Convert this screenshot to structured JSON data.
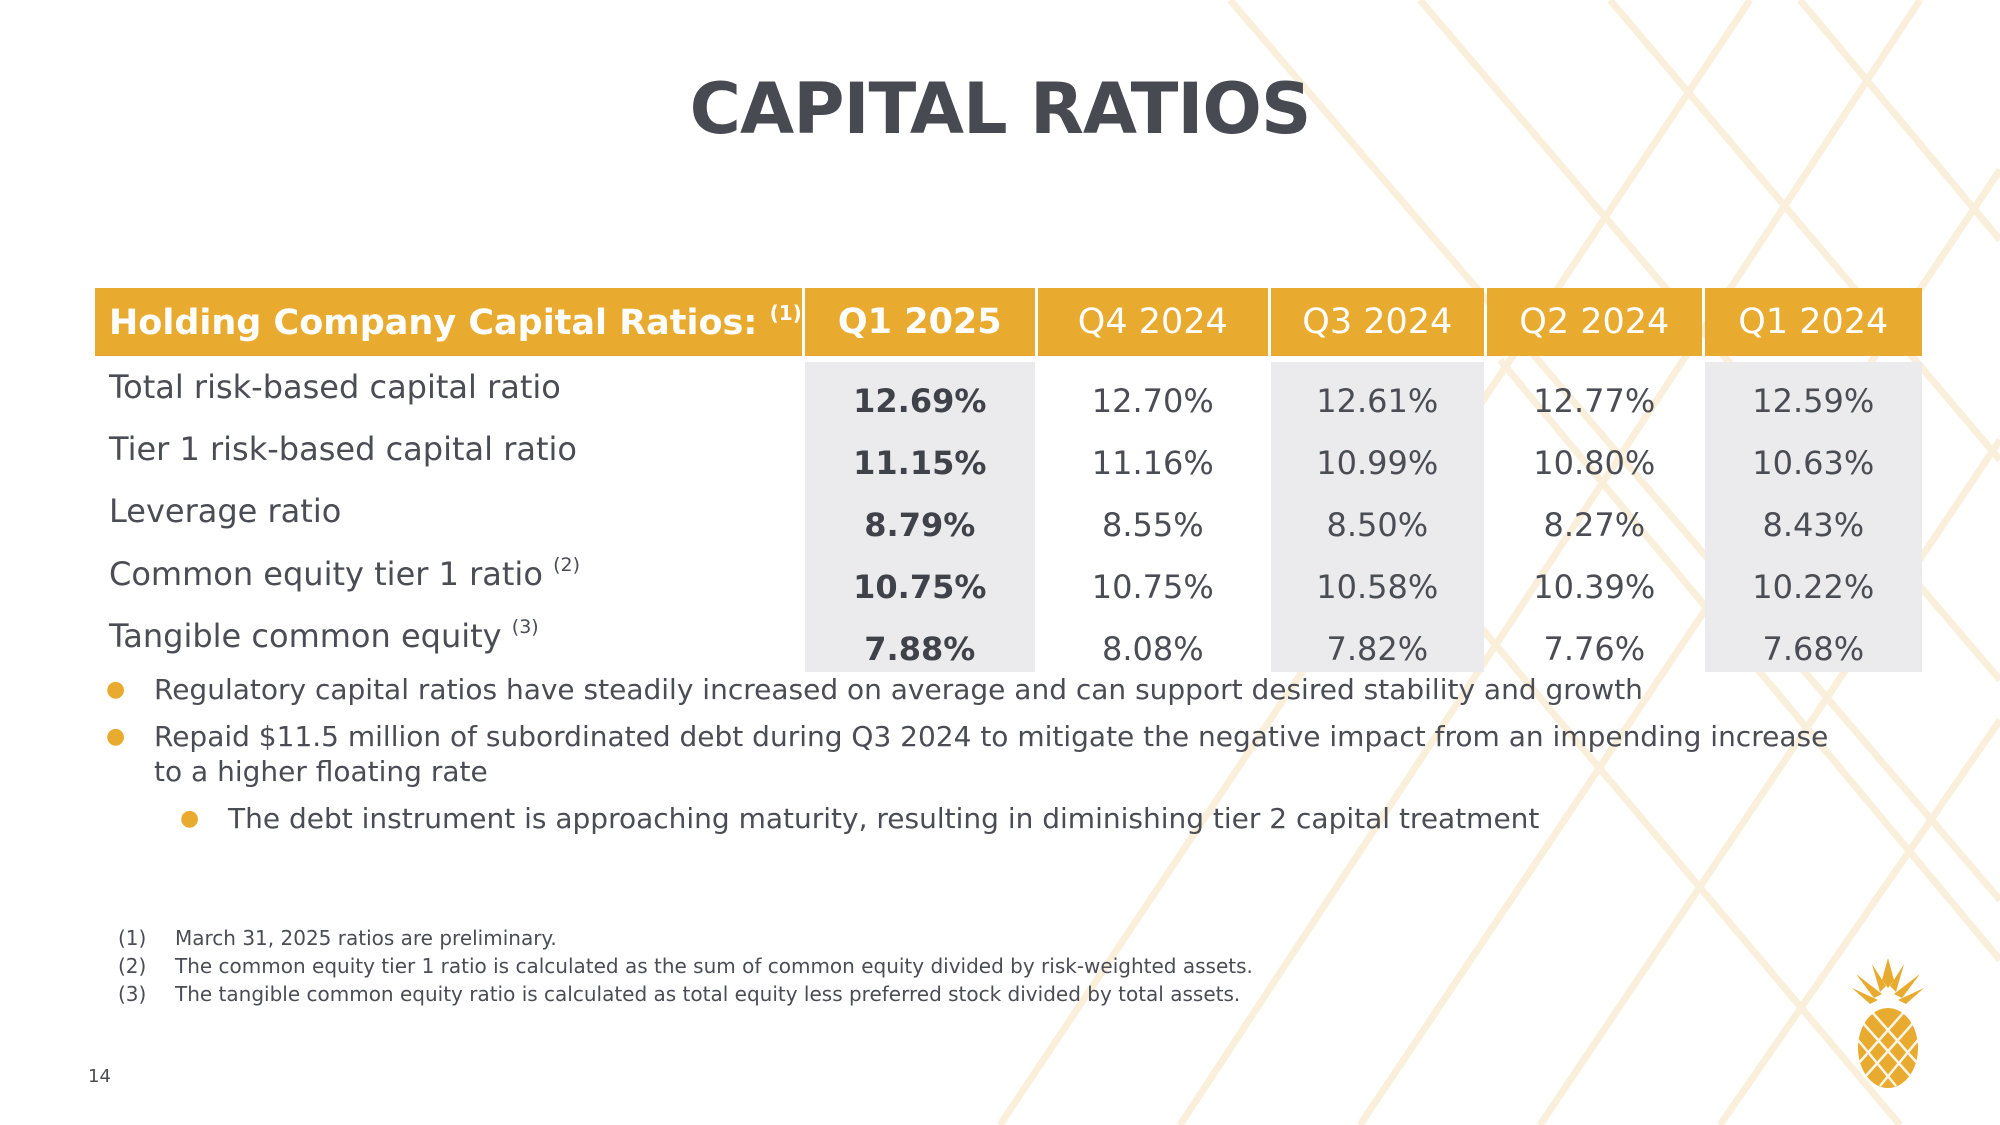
{
  "slide": {
    "title": "CAPITAL RATIOS",
    "page_number": "14",
    "accent_color": "#e8ab2f"
  },
  "table": {
    "header": {
      "row_label": "Holding Company Capital Ratios:",
      "row_label_note": "(1)",
      "columns": [
        "Q1 2025",
        "Q4 2024",
        "Q3 2024",
        "Q2 2024",
        "Q1 2024"
      ]
    },
    "rows": [
      {
        "label": "Total risk-based capital ratio",
        "note": "",
        "values": [
          "12.69%",
          "12.70%",
          "12.61%",
          "12.77%",
          "12.59%"
        ]
      },
      {
        "label": "Tier 1 risk-based capital ratio",
        "note": "",
        "values": [
          "11.15%",
          "11.16%",
          "10.99%",
          "10.80%",
          "10.63%"
        ]
      },
      {
        "label": "Leverage ratio",
        "note": "",
        "values": [
          "8.79%",
          "8.55%",
          "8.50%",
          "8.27%",
          "8.43%"
        ]
      },
      {
        "label": "Common equity tier 1 ratio",
        "note": "(2)",
        "values": [
          "10.75%",
          "10.75%",
          "10.58%",
          "10.39%",
          "10.22%"
        ]
      },
      {
        "label": "Tangible common equity",
        "note": "(3)",
        "values": [
          "7.88%",
          "8.08%",
          "7.82%",
          "7.76%",
          "7.68%"
        ]
      }
    ]
  },
  "bullets": [
    "Regulatory capital ratios have steadily increased on average and can support desired stability and growth",
    "Repaid $11.5 million of subordinated debt during Q3 2024 to mitigate the negative impact from an impending increase to a higher floating rate",
    "The debt instrument is approaching maturity, resulting in diminishing tier 2 capital treatment"
  ],
  "footnotes": [
    {
      "num": "(1)",
      "text": "March 31, 2025 ratios are preliminary."
    },
    {
      "num": "(2)",
      "text": "The common equity tier 1 ratio is calculated as the sum of common equity divided by risk-weighted assets."
    },
    {
      "num": "(3)",
      "text": "The tangible common equity ratio is calculated as total equity less preferred stock divided by total assets."
    }
  ],
  "logo": {
    "icon": "pineapple-icon",
    "color": "#e8ab2f"
  }
}
